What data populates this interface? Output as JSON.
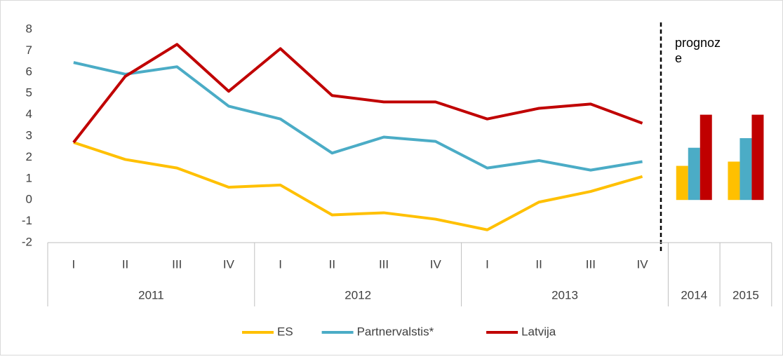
{
  "chart_data": {
    "type": "line",
    "categories": [
      "I",
      "II",
      "III",
      "IV",
      "I",
      "II",
      "III",
      "IV",
      "I",
      "II",
      "III",
      "IV"
    ],
    "groups": [
      "2011",
      "2012",
      "2013"
    ],
    "forecast_categories": [
      "2014",
      "2015"
    ],
    "annotation": "prognoze",
    "series": [
      {
        "name": "ES",
        "color": "#ffc000",
        "values": [
          2.7,
          1.9,
          1.5,
          0.6,
          0.7,
          -0.7,
          -0.6,
          -0.9,
          -1.4,
          -0.1,
          0.4,
          1.1
        ],
        "forecast": [
          1.6,
          1.8
        ]
      },
      {
        "name": "Partnervalstis*",
        "color": "#4bacc6",
        "values": [
          6.45,
          5.9,
          6.25,
          4.4,
          3.8,
          2.2,
          2.95,
          2.75,
          1.5,
          1.85,
          1.4,
          1.8
        ],
        "forecast": [
          2.45,
          2.9
        ]
      },
      {
        "name": "Latvija",
        "color": "#c00000",
        "values": [
          2.7,
          5.8,
          7.3,
          5.1,
          7.1,
          4.9,
          4.6,
          4.6,
          3.8,
          4.3,
          4.5,
          3.6
        ],
        "forecast": [
          4.0,
          4.0
        ]
      }
    ],
    "ylim": [
      -2,
      8
    ],
    "yticks": [
      -2,
      -1,
      0,
      1,
      2,
      3,
      4,
      5,
      6,
      7,
      8
    ],
    "grid": false,
    "legend": "bottom"
  }
}
